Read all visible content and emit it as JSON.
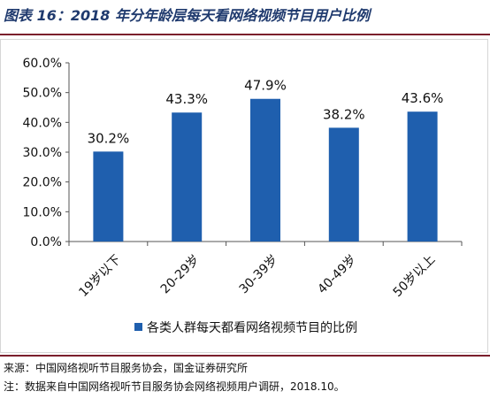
{
  "figure": {
    "title": "图表 16：2018 年分年龄层每天看网络视频节目用户比例"
  },
  "chart_data": {
    "type": "bar",
    "categories": [
      "19岁以下",
      "20-29岁",
      "30-39岁",
      "40-49岁",
      "50岁以上"
    ],
    "series": [
      {
        "name": "各类人群每天都看网络视频节目的比例",
        "values": [
          30.2,
          43.3,
          47.9,
          38.2,
          43.6
        ]
      }
    ],
    "data_labels": [
      "30.2%",
      "43.3%",
      "47.9%",
      "38.2%",
      "43.6%"
    ],
    "y_ticks": [
      "0.0%",
      "10.0%",
      "20.0%",
      "30.0%",
      "40.0%",
      "50.0%",
      "60.0%"
    ],
    "ylim": [
      0,
      60
    ],
    "legend_position": "bottom",
    "grid": false,
    "colors": {
      "bar": "#1f5fae"
    }
  },
  "notes": {
    "source": "来源：中国网络视听节目服务协会，国金证券研究所",
    "note": "注：数据来自中国网络视听节目服务协会网络视频用户调研，2018.10。"
  }
}
